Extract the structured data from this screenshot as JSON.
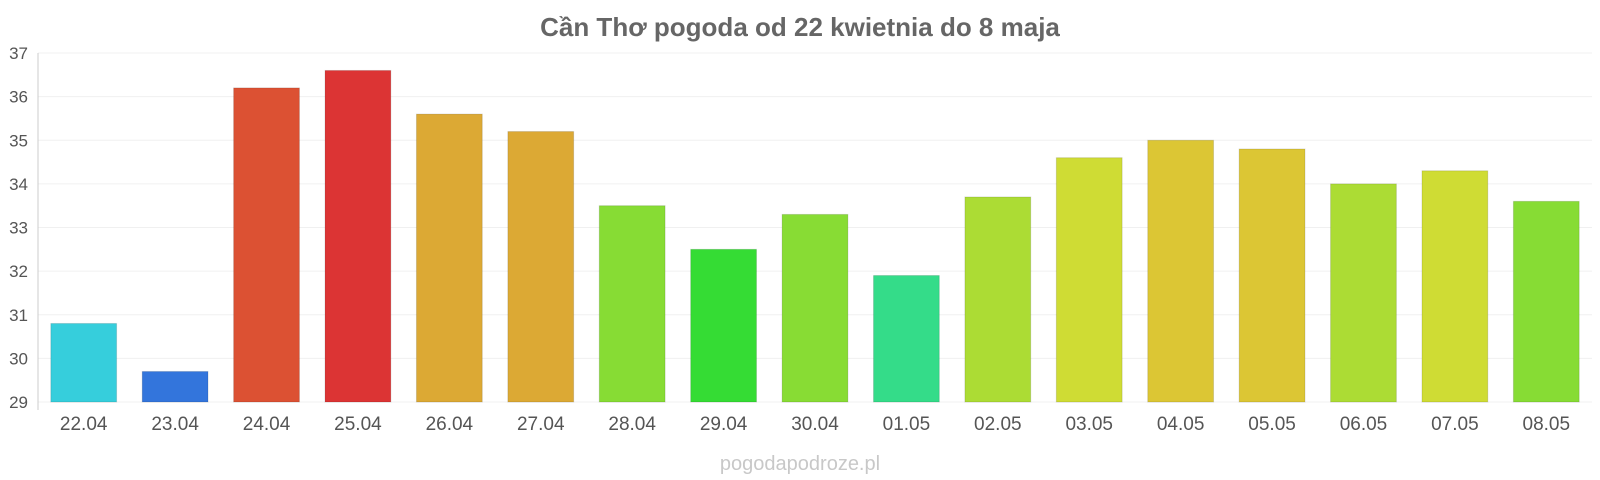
{
  "chart_data": {
    "type": "bar",
    "title": "Cần Thơ pogoda od 22 kwietnia do 8 maja",
    "xlabel": "",
    "ylabel": "",
    "ylim": [
      29,
      37
    ],
    "yticks": [
      "29",
      "30",
      "31",
      "32",
      "33",
      "34",
      "35",
      "36",
      "37"
    ],
    "grid": true,
    "categories": [
      "22.04",
      "23.04",
      "24.04",
      "25.04",
      "26.04",
      "27.04",
      "28.04",
      "29.04",
      "30.04",
      "01.05",
      "02.05",
      "03.05",
      "04.05",
      "05.05",
      "06.05",
      "07.05",
      "08.05"
    ],
    "values": [
      30.8,
      29.7,
      36.2,
      36.6,
      35.6,
      35.2,
      33.5,
      32.5,
      33.3,
      31.9,
      33.7,
      34.6,
      35.0,
      34.8,
      34.0,
      34.3,
      33.6
    ],
    "bar_colors": [
      "#36cedc",
      "#3375dc",
      "#dc5133",
      "#dc3434",
      "#dca934",
      "#dca934",
      "#87dc34",
      "#35dc34",
      "#88dc34",
      "#34dc89",
      "#acdc34",
      "#cfdc34",
      "#dcc634",
      "#dcc634",
      "#acdc34",
      "#cfdc34",
      "#87dc34"
    ]
  },
  "footer": {
    "watermark": "pogodapodroze.pl"
  }
}
